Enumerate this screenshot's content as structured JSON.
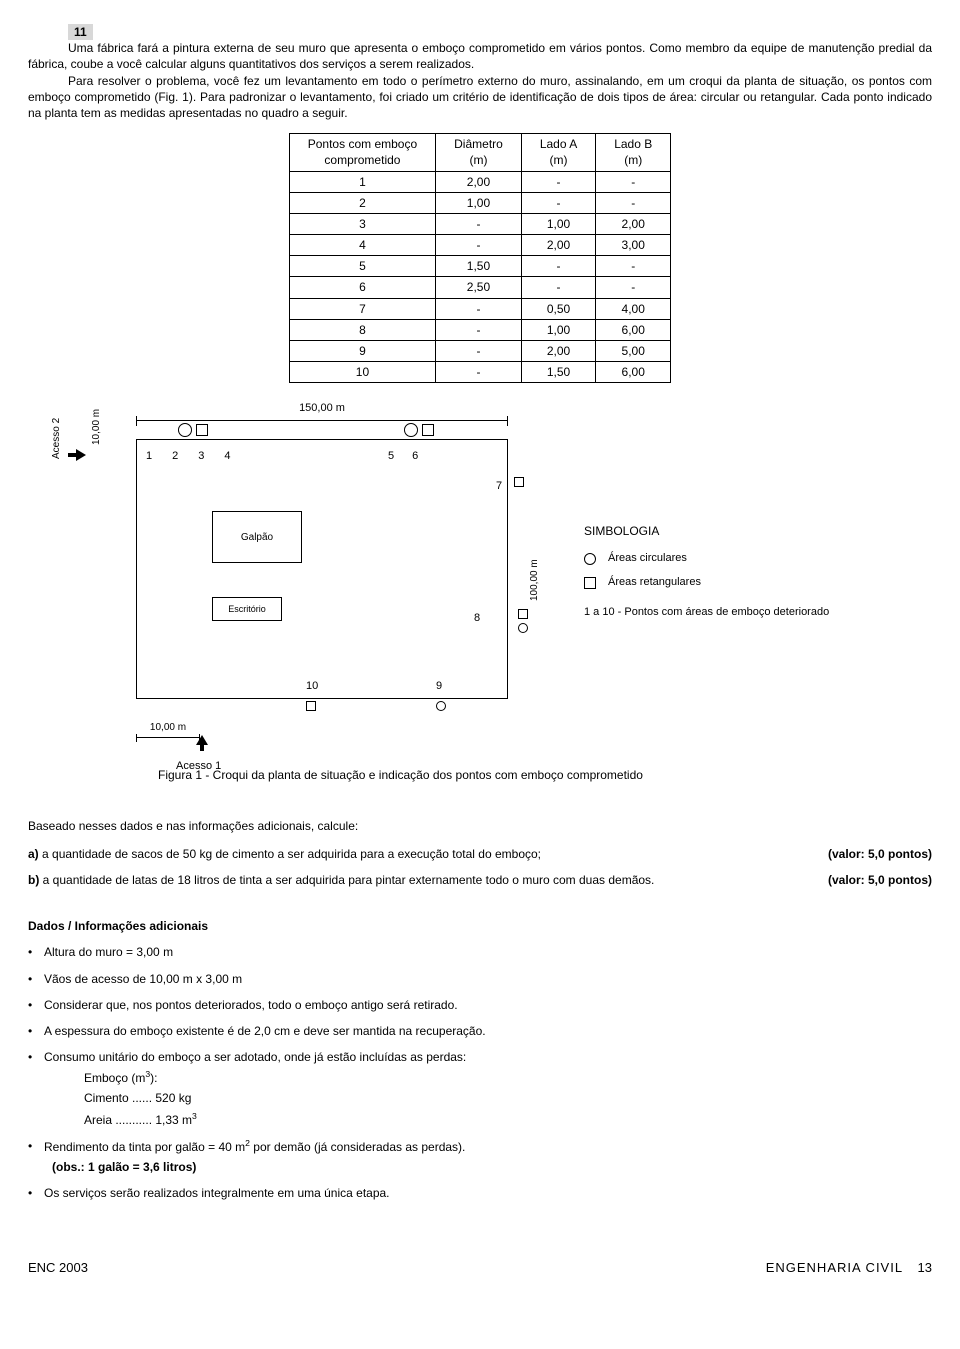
{
  "question_number": "11",
  "paragraph1": "Uma fábrica fará a pintura externa de seu muro que apresenta o emboço comprometido em vários pontos. Como membro da equipe de manutenção predial da fábrica, coube a você calcular alguns quantitativos dos serviços a serem realizados.",
  "paragraph2": "Para resolver o problema, você fez um levantamento em todo o perímetro externo do muro, assinalando, em um croqui da planta de situação, os pontos com emboço comprometido (Fig. 1). Para padronizar o levantamento, foi criado um critério de identificação de dois tipos de área: circular ou retangular. Cada ponto indicado na planta tem as medidas apresentadas no quadro a seguir.",
  "table": {
    "columns": [
      "Pontos com emboço\ncomprometido",
      "Diâmetro\n(m)",
      "Lado A\n(m)",
      "Lado B\n(m)"
    ],
    "rows": [
      [
        "1",
        "2,00",
        "-",
        "-"
      ],
      [
        "2",
        "1,00",
        "-",
        "-"
      ],
      [
        "3",
        "-",
        "1,00",
        "2,00"
      ],
      [
        "4",
        "-",
        "2,00",
        "3,00"
      ],
      [
        "5",
        "1,50",
        "-",
        "-"
      ],
      [
        "6",
        "2,50",
        "-",
        "-"
      ],
      [
        "7",
        "-",
        "0,50",
        "4,00"
      ],
      [
        "8",
        "-",
        "1,00",
        "6,00"
      ],
      [
        "9",
        "-",
        "2,00",
        "5,00"
      ],
      [
        "10",
        "-",
        "1,50",
        "6,00"
      ]
    ]
  },
  "figure": {
    "top_dim": "150,00 m",
    "left_dim": "10,00 m",
    "right_dim": "100,00 m",
    "bottom_dim": "10,00 m",
    "acesso2": "Acesso 2",
    "acesso1": "Acesso 1",
    "galpao": "Galpão",
    "escritorio": "Escritório",
    "points_top1": [
      "1",
      "2",
      "3",
      "4"
    ],
    "points_top2": [
      "5",
      "6"
    ],
    "p7": "7",
    "p8": "8",
    "p9": "9",
    "p10": "10",
    "simbologia_title": "SIMBOLOGIA",
    "simb_circ": "Áreas circulares",
    "simb_rect": "Áreas retangulares",
    "simb_pts": "1 a 10 - Pontos com áreas de emboço deteriorado"
  },
  "figure_caption": "Figura 1 - Croqui da planta de situação e indicação dos pontos com emboço comprometido",
  "calc_intro": "Baseado nesses dados e nas informações adicionais, calcule:",
  "qa_label": "a)",
  "qa_text": " a quantidade de sacos de 50 kg de cimento a ser adquirida para a execução total do emboço;",
  "qa_valor": "(valor: 5,0 pontos)",
  "qb_label": "b)",
  "qb_text": " a quantidade de latas de 18 litros de tinta a ser adquirida para pintar externamente todo o muro com duas demãos.",
  "qb_valor": "(valor: 5,0 pontos)",
  "dados": {
    "heading": "Dados / Informações adicionais",
    "items": [
      "Altura do muro = 3,00 m",
      "Vãos de acesso de 10,00 m x 3,00 m",
      "Considerar que, nos pontos deteriorados, todo o emboço antigo será retirado.",
      "A espessura do emboço existente é de 2,0 cm e deve ser mantida na recuperação.",
      "Consumo unitário do emboço a ser adotado, onde já estão incluídas as perdas:"
    ],
    "sub1a": "Emboço (m",
    "sub1b": "):",
    "sub2": "Cimento ...... 520 kg",
    "sub3a": "Areia ........... 1,33 m",
    "item6a": "Rendimento da tinta por galão = 40 m",
    "item6b": " por demão (já consideradas as perdas).",
    "obs": "(obs.: 1 galão = 3,6 litros)",
    "item7": "Os serviços serão realizados integralmente em uma única etapa."
  },
  "footer": {
    "left": "ENC 2003",
    "right_course": "ENGENHARIA  CIVIL",
    "right_page": "13"
  }
}
